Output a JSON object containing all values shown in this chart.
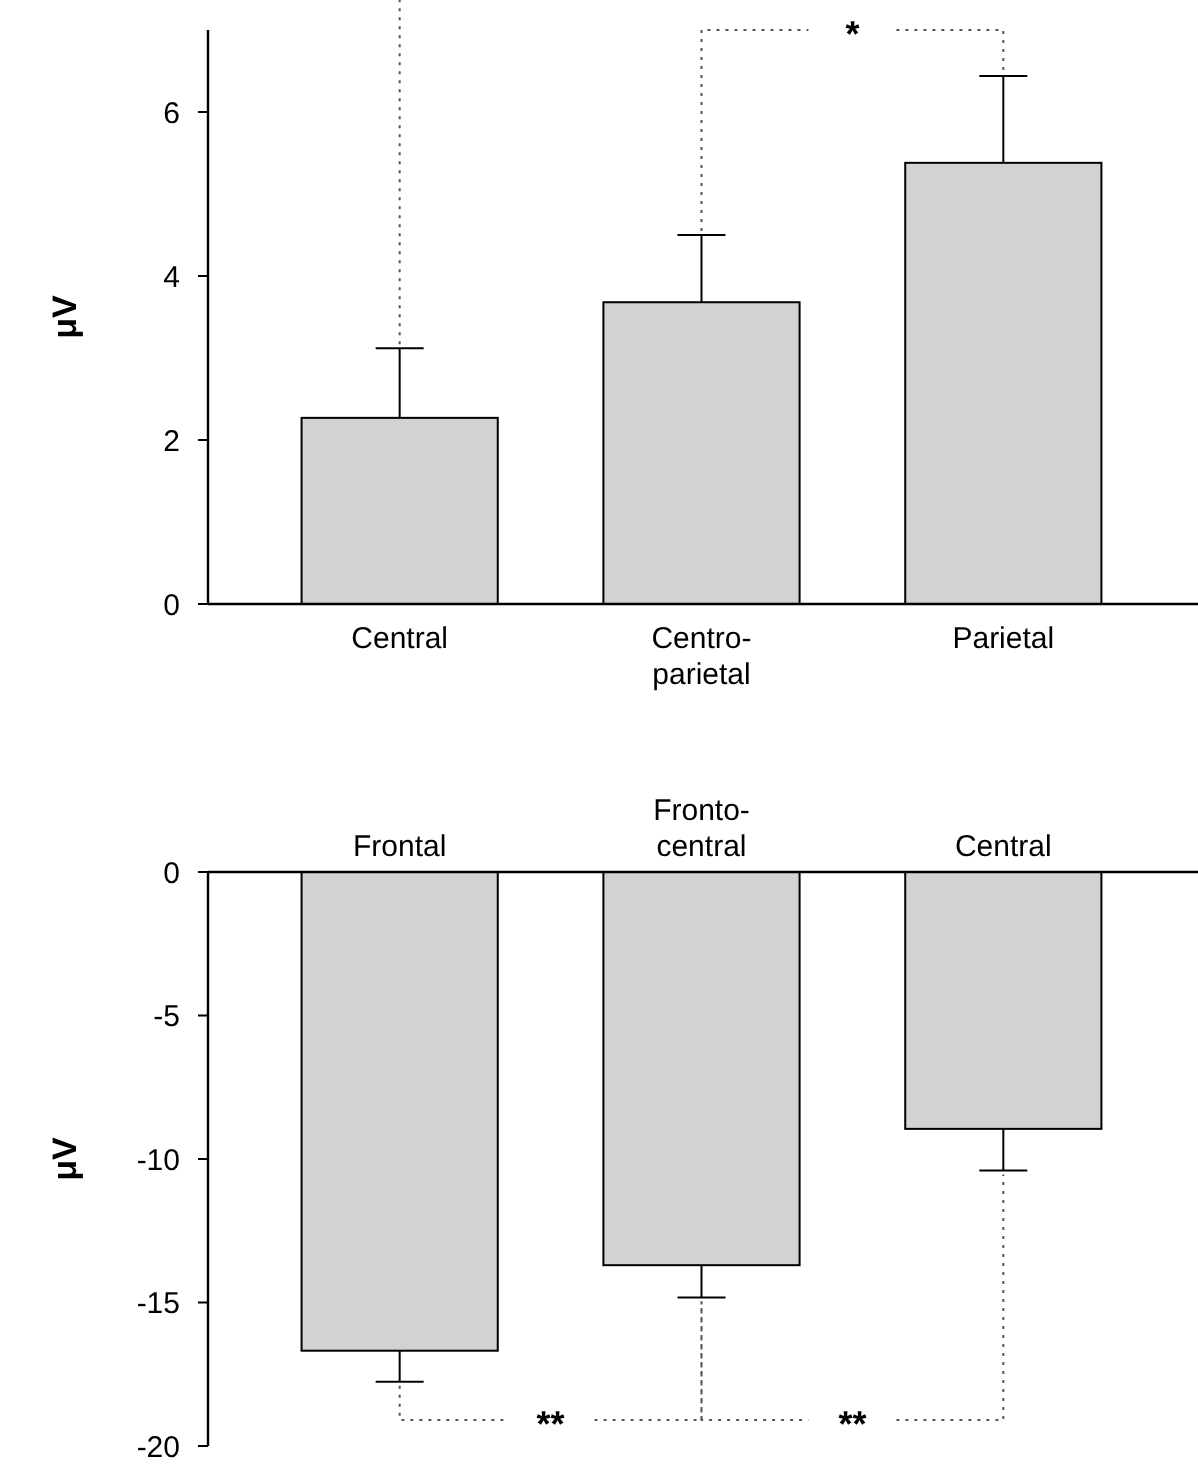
{
  "chart_data": [
    {
      "type": "bar",
      "ylabel": "μV",
      "categories": [
        "Central",
        "Centro-\nparietal",
        "Parietal"
      ],
      "values": [
        2.27,
        3.68,
        5.38
      ],
      "errors": [
        [
          2.27,
          3.12
        ],
        [
          3.68,
          4.5
        ],
        [
          5.38,
          6.44
        ]
      ],
      "color": "#d1d2d4",
      "ylim": [
        0,
        7
      ],
      "yticks": [
        0,
        2,
        4,
        6
      ],
      "annotations": [
        {
          "text": "*",
          "x": "Parietal",
          "y": 6.44
        }
      ]
    },
    {
      "type": "bar",
      "ylabel": "μV",
      "categories": [
        "Frontal",
        "Fronto-\ncentral",
        "Central"
      ],
      "values": [
        -16.68,
        -13.7,
        -8.95
      ],
      "errors": [
        [
          -17.76,
          -16.68
        ],
        [
          -14.83,
          -13.7
        ],
        [
          -10.4,
          -8.95
        ]
      ],
      "color": "#d1d2d4",
      "ylim": [
        -20,
        0
      ],
      "yticks": [
        0,
        -5,
        -10,
        -15,
        -20
      ],
      "annotations": [
        {
          "text": "**",
          "x": "Frontal",
          "y": -17.76
        },
        {
          "text": "**",
          "x": "Central",
          "y": -10.4
        }
      ]
    }
  ]
}
